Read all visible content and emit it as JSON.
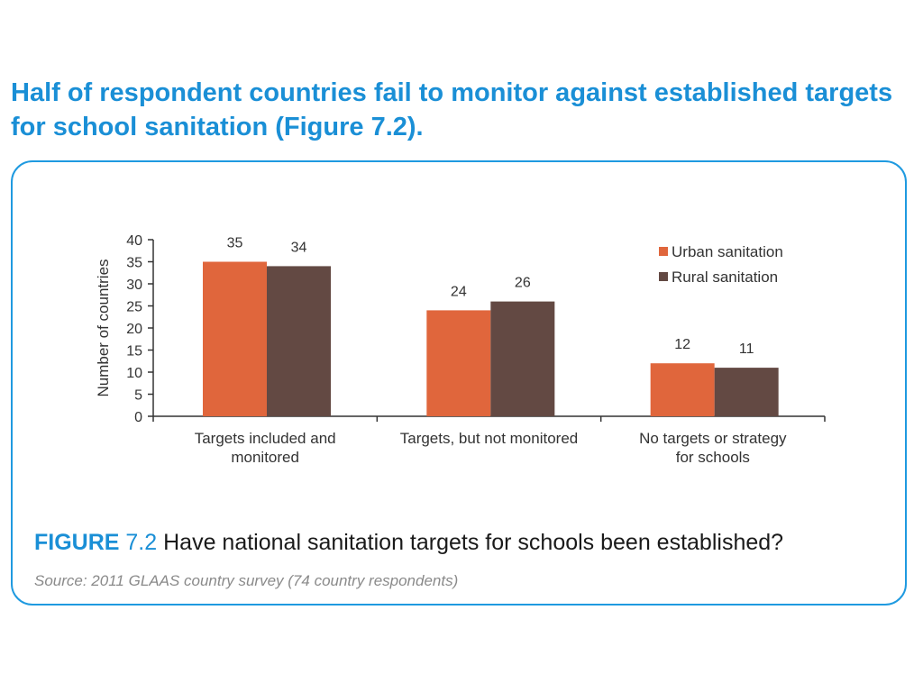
{
  "headline": "Half of respondent countries fail to monitor against established targets for school sanitation (Figure 7.2).",
  "figure": {
    "label_prefix": "FIGURE",
    "label_number": "7.2",
    "title": "Have national sanitation targets for schools been established?",
    "source": "Source: 2011 GLAAS country survey (74 country respondents)"
  },
  "colors": {
    "accent": "#1a8fd6",
    "urban": "#e0663c",
    "rural": "#634943"
  },
  "chart_data": {
    "type": "bar",
    "title": "",
    "xlabel": "",
    "ylabel": "Number of countries",
    "ylim": [
      0,
      40
    ],
    "yticks": [
      0,
      5,
      10,
      15,
      20,
      25,
      30,
      35,
      40
    ],
    "grid": false,
    "legend_position": "top-right",
    "categories": [
      [
        "Targets included and",
        "monitored"
      ],
      [
        "Targets, but not monitored"
      ],
      [
        "No targets or strategy",
        "for schools"
      ]
    ],
    "series": [
      {
        "name": "Urban sanitation",
        "color": "#e0663c",
        "values": [
          35,
          24,
          12
        ]
      },
      {
        "name": "Rural sanitation",
        "color": "#634943",
        "values": [
          34,
          26,
          11
        ]
      }
    ]
  }
}
